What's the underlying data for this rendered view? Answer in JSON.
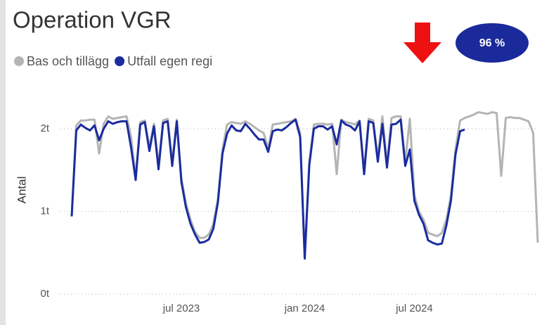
{
  "chart_data": {
    "type": "line",
    "title": "Operation VGR",
    "y_label": "Antal",
    "badge": "96 %",
    "categories": [
      null,
      null,
      null,
      null,
      null,
      null,
      null,
      null,
      null,
      null,
      null,
      null,
      null,
      null,
      null,
      null,
      null,
      null,
      null,
      null,
      null,
      null,
      null,
      null,
      "jul 2023",
      null,
      null,
      null,
      null,
      null,
      null,
      null,
      null,
      null,
      null,
      null,
      null,
      null,
      null,
      null,
      null,
      null,
      null,
      null,
      null,
      null,
      null,
      null,
      null,
      null,
      null,
      "jan 2024",
      null,
      null,
      null,
      null,
      null,
      null,
      null,
      null,
      null,
      null,
      null,
      null,
      null,
      null,
      null,
      null,
      null,
      null,
      null,
      null,
      null,
      null,
      null,
      "jul 2024",
      null,
      null,
      null,
      null,
      null,
      null,
      null,
      null,
      null,
      null,
      null,
      null,
      null,
      null,
      null,
      null,
      null,
      null,
      null,
      null,
      null,
      null,
      null,
      null,
      null,
      null,
      null
    ],
    "series": [
      {
        "name": "Bas och tillägg",
        "color": "#b4b4b4",
        "values": [
          950,
          2040,
          2100,
          2100,
          2110,
          2110,
          1700,
          2060,
          2150,
          2120,
          2130,
          2140,
          2150,
          1900,
          1420,
          2080,
          2100,
          1780,
          2060,
          1560,
          2100,
          2120,
          1600,
          2110,
          1400,
          1100,
          900,
          750,
          680,
          680,
          720,
          850,
          1150,
          1750,
          2050,
          2080,
          2070,
          2060,
          2090,
          2060,
          2020,
          1980,
          1950,
          1760,
          2050,
          2060,
          2070,
          2080,
          2090,
          2120,
          1950,
          460,
          1600,
          2050,
          2060,
          2060,
          2050,
          2060,
          1450,
          2110,
          2080,
          2070,
          2050,
          2100,
          1500,
          2120,
          2100,
          1650,
          2150,
          1580,
          2130,
          2150,
          2150,
          1600,
          2120,
          1200,
          1000,
          900,
          740,
          720,
          700,
          740,
          900,
          1200,
          1750,
          2100,
          2130,
          2150,
          2170,
          2200,
          2190,
          2180,
          2200,
          2190,
          1430,
          2130,
          2140,
          2130,
          2130,
          2110,
          2090,
          1950,
          620
        ]
      },
      {
        "name": "Utfall egen regi",
        "color": "#1a2c9e",
        "values": [
          940,
          1980,
          2050,
          2010,
          1980,
          2040,
          1860,
          2000,
          2090,
          2060,
          2080,
          2090,
          2090,
          1770,
          1380,
          2050,
          2080,
          1730,
          2030,
          1510,
          2070,
          2090,
          1550,
          2090,
          1360,
          1050,
          850,
          720,
          620,
          630,
          660,
          790,
          1110,
          1700,
          1940,
          2040,
          1980,
          1970,
          2060,
          2000,
          1930,
          1870,
          1870,
          1720,
          1970,
          1990,
          1980,
          2020,
          2070,
          2110,
          1900,
          430,
          1560,
          2000,
          2030,
          2030,
          1990,
          2030,
          1810,
          2100,
          2050,
          2030,
          1980,
          2090,
          1450,
          2090,
          2070,
          1600,
          2060,
          1530,
          2050,
          2060,
          2110,
          1550,
          1750,
          1130,
          960,
          850,
          650,
          620,
          600,
          610,
          830,
          1130,
          1690,
          1970,
          1990,
          null,
          null,
          null,
          null,
          null,
          null,
          null,
          null,
          null,
          null,
          null,
          null,
          null,
          null,
          null,
          null
        ]
      }
    ],
    "ylim": [
      0,
      2400
    ],
    "yticks": [
      {
        "value": 0,
        "label": "0t"
      },
      {
        "value": 1000,
        "label": "1t"
      },
      {
        "value": 2000,
        "label": "2t"
      }
    ],
    "grid": true
  }
}
